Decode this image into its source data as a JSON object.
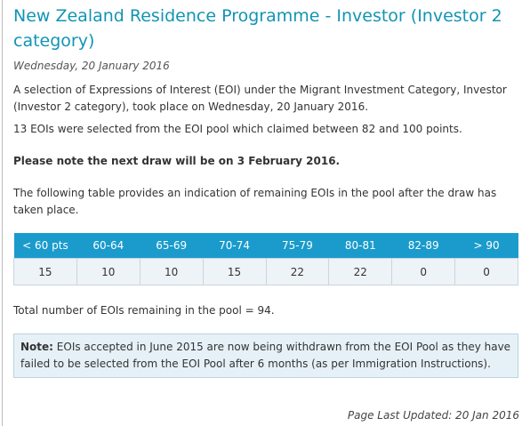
{
  "header": {
    "title": "New Zealand Residence Programme - Investor (Investor 2 category)",
    "date": "Wednesday, 20 January 2016"
  },
  "paragraphs": [
    "A selection of Expressions of Interest (EOI) under the Migrant Investment Category, Investor (Investor 2 category), took place on Wednesday, 20 January 2016.",
    "13 EOIs were selected from the EOI pool which claimed between 82 and 100 points."
  ],
  "next_draw": "Please note the next draw will be on 3 February 2016.",
  "table_intro": "The following table provides an indication of remaining EOIs in the pool after the draw has taken place.",
  "table": {
    "header": [
      "< 60 pts",
      "60-64",
      "65-69",
      "70-74",
      "75-79",
      "80-81",
      "82-89",
      "> 90"
    ],
    "rows": [
      [
        15,
        10,
        10,
        15,
        22,
        22,
        0,
        0
      ]
    ]
  },
  "total": "Total number of EOIs remaining in the pool = 94.",
  "note": {
    "label": "Note:",
    "text": "EOIs accepted in June 2015 are now being withdrawn from the EOI Pool as they have failed to be selected from the EOI Pool after 6 months (as per Immigration Instructions)."
  },
  "footer": "Page Last Updated: 20 Jan 2016"
}
